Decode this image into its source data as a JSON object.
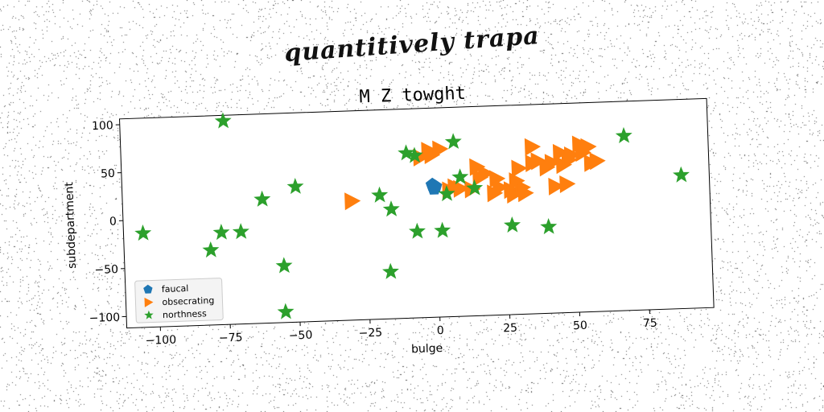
{
  "figure": {
    "suptitle": "quantitively trapa"
  },
  "chart_data": {
    "type": "scatter",
    "title": "M Z towght",
    "xlabel": "bulge",
    "ylabel": "subdepartment",
    "xlim": [
      -112,
      98
    ],
    "ylim": [
      -112,
      106
    ],
    "xticks": [
      -100,
      -75,
      -50,
      -25,
      0,
      25,
      50,
      75
    ],
    "yticks": [
      -100,
      -50,
      0,
      50,
      100
    ],
    "grid": false,
    "legend_position": "lower-left",
    "series": [
      {
        "name": "faucal",
        "marker": "pentagon",
        "color": "#1f77b4",
        "points": [
          [
            -1,
            26
          ],
          [
            -0.5,
            22
          ],
          [
            0,
            24
          ]
        ]
      },
      {
        "name": "obsecrating",
        "marker": "triangle-right",
        "color": "#ff7f0e",
        "points": [
          [
            -5,
            55
          ],
          [
            -2,
            62
          ],
          [
            -1,
            57
          ],
          [
            2,
            63
          ],
          [
            5,
            20
          ],
          [
            7,
            23
          ],
          [
            9,
            21
          ],
          [
            13,
            20
          ],
          [
            15,
            43
          ],
          [
            16,
            32
          ],
          [
            18,
            36
          ],
          [
            21,
            15
          ],
          [
            22,
            30
          ],
          [
            23,
            21
          ],
          [
            27,
            18
          ],
          [
            28,
            13
          ],
          [
            29,
            27
          ],
          [
            30,
            40
          ],
          [
            31,
            20
          ],
          [
            32,
            14
          ],
          [
            35,
            62
          ],
          [
            35,
            45
          ],
          [
            37,
            47
          ],
          [
            40,
            40
          ],
          [
            42,
            45
          ],
          [
            43,
            20
          ],
          [
            45,
            55
          ],
          [
            46,
            42
          ],
          [
            47,
            22
          ],
          [
            48,
            47
          ],
          [
            49,
            52
          ],
          [
            52,
            63
          ],
          [
            53,
            54
          ],
          [
            55,
            60
          ],
          [
            56,
            43
          ],
          [
            58,
            45
          ],
          [
            -30,
            12
          ]
        ]
      },
      {
        "name": "northness",
        "marker": "star",
        "color": "#2ca02c",
        "points": [
          [
            -75,
            100
          ],
          [
            -105,
            -14
          ],
          [
            -81,
            -34
          ],
          [
            -77,
            -16
          ],
          [
            -70,
            -16
          ],
          [
            -62,
            17
          ],
          [
            -50,
            29
          ],
          [
            -55,
            -53
          ],
          [
            -55,
            -101
          ],
          [
            -20,
            17
          ],
          [
            -17,
            -63
          ],
          [
            -16,
            2
          ],
          [
            -10,
            60
          ],
          [
            -7,
            57
          ],
          [
            -7,
            -22
          ],
          [
            2,
            -22
          ],
          [
            4,
            16
          ],
          [
            7,
            70
          ],
          [
            9,
            33
          ],
          [
            14,
            21
          ],
          [
            27,
            -19
          ],
          [
            40,
            -22
          ],
          [
            68,
            70
          ],
          [
            88,
            27
          ]
        ]
      }
    ]
  }
}
